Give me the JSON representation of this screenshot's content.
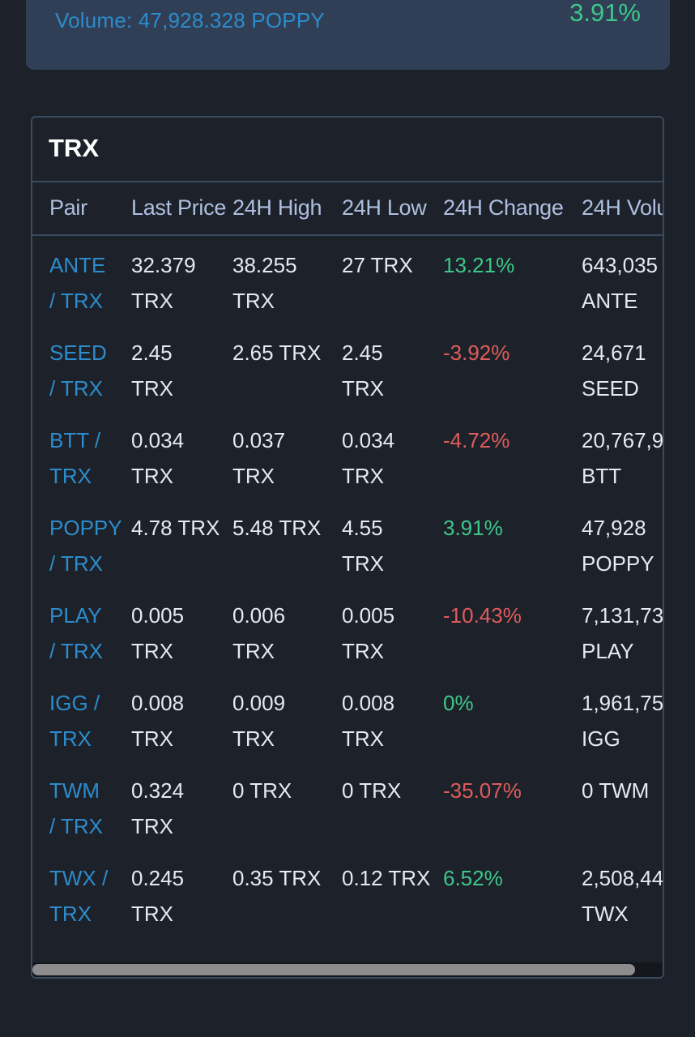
{
  "ticker": {
    "volume_text": "Volume: 47,928.328 POPPY",
    "change_text": "3.91%",
    "change_color": "#3ec78b"
  },
  "market": {
    "title": "TRX",
    "columns": [
      "Pair",
      "Last Price",
      "24H High",
      "24H Low",
      "24H Change",
      "24H Volu"
    ],
    "rows": [
      {
        "pair": "ANTE\n/ TRX",
        "last": "32.379\nTRX",
        "high": "38.255\nTRX",
        "low": "27 TRX",
        "change": "13.21%",
        "trend": "pos",
        "volume": "643,035\nANTE"
      },
      {
        "pair": "SEED\n/ TRX",
        "last": "2.45\nTRX",
        "high": "2.65 TRX",
        "low": "2.45\nTRX",
        "change": "-3.92%",
        "trend": "neg",
        "volume": "24,671\nSEED"
      },
      {
        "pair": "BTT /\nTRX",
        "last": "0.034\nTRX",
        "high": "0.037\nTRX",
        "low": "0.034\nTRX",
        "change": "-4.72%",
        "trend": "neg",
        "volume": "20,767,9\nBTT"
      },
      {
        "pair": "POPPY\n/ TRX",
        "last": "4.78 TRX",
        "high": "5.48 TRX",
        "low": "4.55\nTRX",
        "change": "3.91%",
        "trend": "pos",
        "volume": "47,928\nPOPPY"
      },
      {
        "pair": "PLAY\n/ TRX",
        "last": "0.005\nTRX",
        "high": "0.006\nTRX",
        "low": "0.005\nTRX",
        "change": "-10.43%",
        "trend": "neg",
        "volume": "7,131,73(\nPLAY"
      },
      {
        "pair": "IGG /\nTRX",
        "last": "0.008\nTRX",
        "high": "0.009\nTRX",
        "low": "0.008\nTRX",
        "change": "0%",
        "trend": "pos",
        "volume": "1,961,75\nIGG"
      },
      {
        "pair": "TWM\n/ TRX",
        "last": "0.324\nTRX",
        "high": "0 TRX",
        "low": "0 TRX",
        "change": "-35.07%",
        "trend": "neg",
        "volume": "0 TWM"
      },
      {
        "pair": "TWX /\nTRX",
        "last": "0.245\nTRX",
        "high": "0.35 TRX",
        "low": "0.12 TRX",
        "change": "6.52%",
        "trend": "pos",
        "volume": "2,508,44\nTWX"
      }
    ]
  },
  "scrollbar": {
    "position": 0.95
  }
}
